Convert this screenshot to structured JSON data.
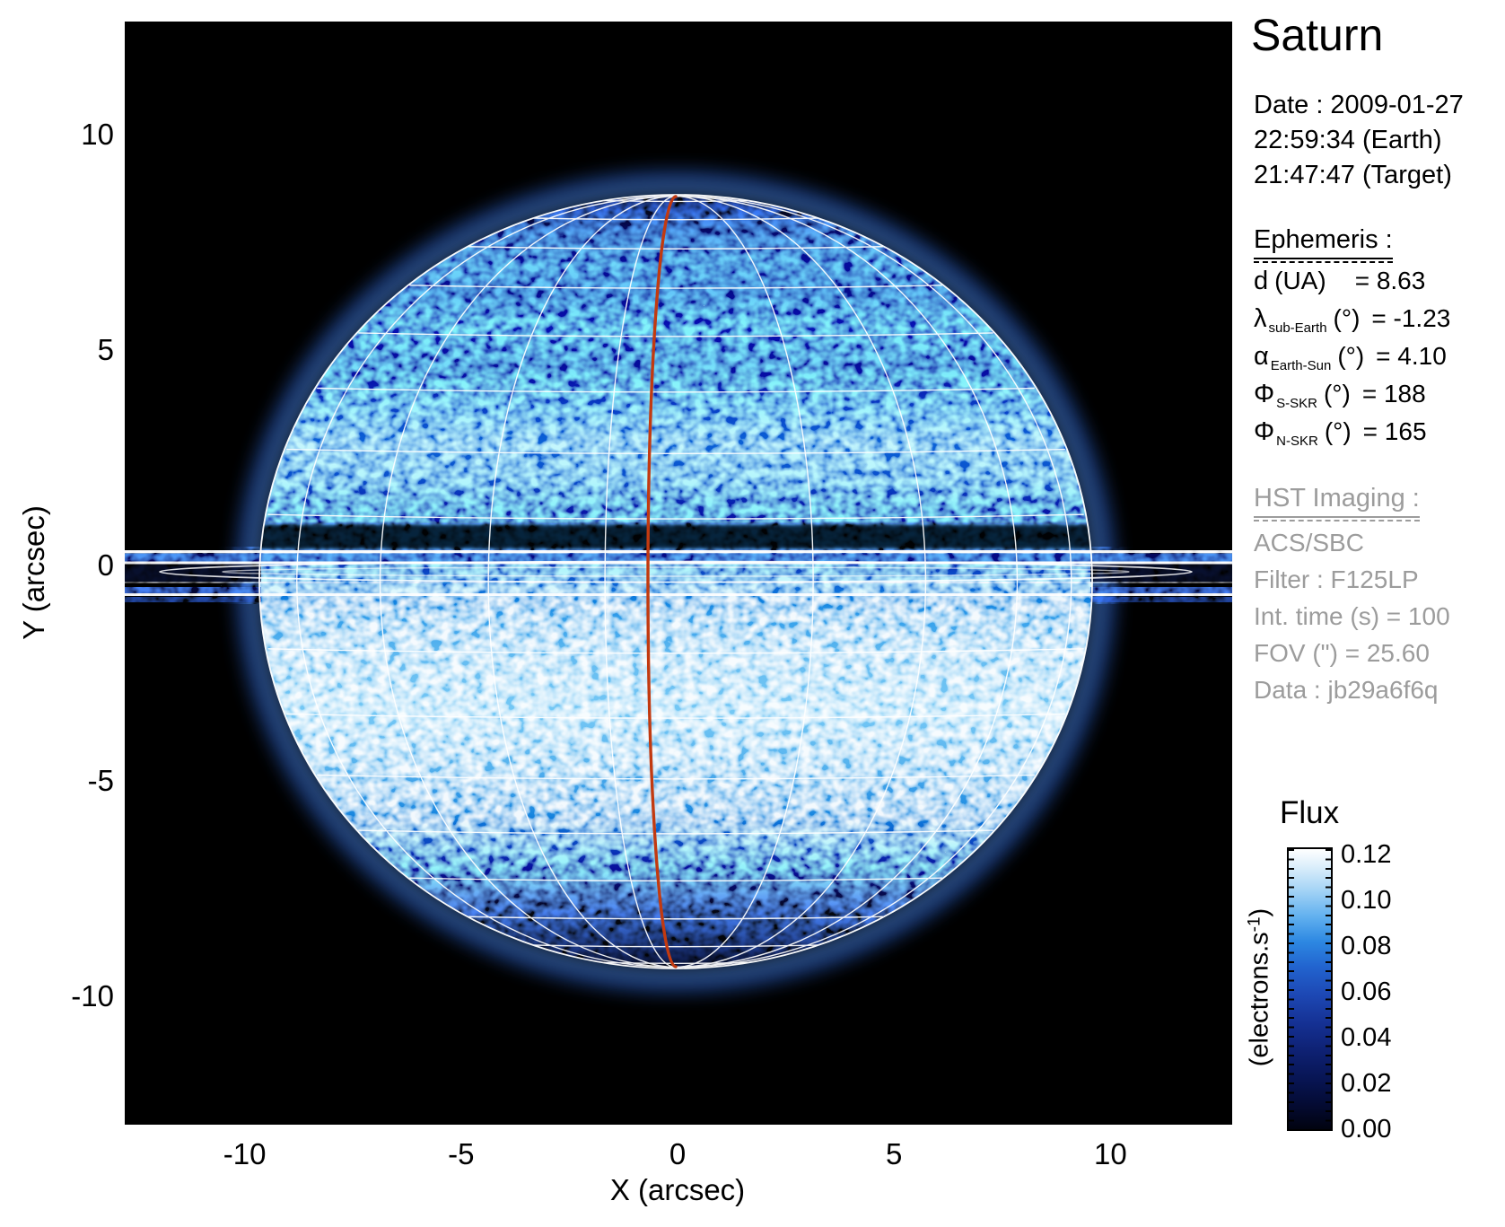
{
  "title": "Saturn",
  "observation": {
    "lines": [
      "Date : 2009-01-27",
      "22:59:34 (Earth)",
      "21:47:47 (Target)"
    ]
  },
  "ephemeris": {
    "heading": "Ephemeris :",
    "rows": [
      {
        "sym": "d",
        "sub": "",
        "unit": "(UA)",
        "val": "= 8.63"
      },
      {
        "sym": "λ",
        "sub": "sub-Earth",
        "unit": "(°)",
        "val": "= -1.23"
      },
      {
        "sym": "α",
        "sub": "Earth-Sun",
        "unit": "(°)",
        "val": "= 4.10"
      },
      {
        "sym": "Φ",
        "sub": "S-SKR",
        "unit": "(°)",
        "val": "= 188"
      },
      {
        "sym": "Φ",
        "sub": "N-SKR",
        "unit": "(°)",
        "val": "= 165"
      }
    ]
  },
  "hst": {
    "heading": "HST Imaging :",
    "rows": [
      "ACS/SBC",
      "Filter : F125LP",
      "Int. time (s) = 100",
      "FOV (\") = 25.60",
      "Data : jb29a6f6q"
    ],
    "text_color": "#9c9c9c"
  },
  "colorbar": {
    "title": "Flux",
    "unit_prefix": "(electrons.s",
    "unit_sup": "-1",
    "unit_suffix": ")",
    "tick_labels": [
      "0.12",
      "0.10",
      "0.08",
      "0.06",
      "0.04",
      "0.02",
      "0.00"
    ],
    "colormap_top_to_bottom": [
      "#ffffff",
      "#ddeffb",
      "#a9d6f6",
      "#62b1ef",
      "#2d88e2",
      "#2264cf",
      "#1d48b4",
      "#153194",
      "#0e2173",
      "#081554",
      "#040b34",
      "#010310"
    ]
  },
  "axes": {
    "x_label": "X (arcsec)",
    "y_label": "Y (arcsec)",
    "x_ticks": [
      "-10",
      "-5",
      "0",
      "5",
      "10"
    ],
    "y_ticks": [
      "10",
      "5",
      "0",
      "-5",
      "-10"
    ]
  },
  "scene": {
    "background": "#000000",
    "grid_color": "#ffffff",
    "meridian_color": "#c23a10",
    "shadow_color": "#040916"
  },
  "chart_data": {
    "type": "heatmap",
    "title": "Saturn",
    "xlabel": "X (arcsec)",
    "ylabel": "Y (arcsec)",
    "xlim": [
      -12.8,
      12.8
    ],
    "ylim": [
      -12.8,
      12.8
    ],
    "x_ticks": [
      -10,
      -5,
      0,
      5,
      10
    ],
    "y_ticks": [
      10,
      5,
      0,
      -5,
      -10
    ],
    "grid": false,
    "colorbar": {
      "label": "Flux",
      "unit": "electrons.s-1",
      "range": [
        0.0,
        0.12
      ],
      "ticks": [
        0.0,
        0.02,
        0.04,
        0.06,
        0.08,
        0.1,
        0.12
      ],
      "colormap": "black-to-blue-to-white"
    },
    "image_content": {
      "subject": "HST far-UV image of Saturn with rings seen nearly edge-on",
      "planet_center_arcsec": [
        0.0,
        -0.4
      ],
      "planet_equatorial_radius_arcsec": 9.6,
      "planet_polar_radius_arcsec": 8.9,
      "ring_plane_y_arcsec": 0.0,
      "ring_extent_arcsec": 11.9,
      "overlays": [
        "white latitude-longitude grid",
        "red central meridian line",
        "dark ring shadow band just north of ring plane",
        "white limb and ring-edge contours"
      ]
    }
  }
}
